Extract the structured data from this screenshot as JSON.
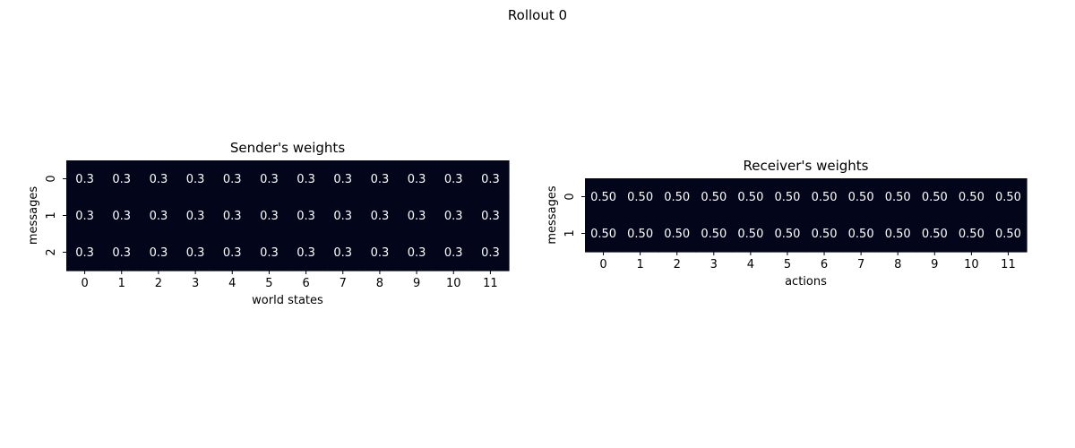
{
  "figure_title": "Rollout 0",
  "chart_data": [
    {
      "type": "heatmap",
      "title": "Sender's weights",
      "xlabel": "world states",
      "ylabel": "messages",
      "x_ticks": [
        "0",
        "1",
        "2",
        "3",
        "4",
        "5",
        "6",
        "7",
        "8",
        "9",
        "10",
        "11"
      ],
      "y_ticks": [
        "0",
        "1",
        "2"
      ],
      "values": [
        [
          0.3,
          0.3,
          0.3,
          0.3,
          0.3,
          0.3,
          0.3,
          0.3,
          0.3,
          0.3,
          0.3,
          0.3
        ],
        [
          0.3,
          0.3,
          0.3,
          0.3,
          0.3,
          0.3,
          0.3,
          0.3,
          0.3,
          0.3,
          0.3,
          0.3
        ],
        [
          0.3,
          0.3,
          0.3,
          0.3,
          0.3,
          0.3,
          0.3,
          0.3,
          0.3,
          0.3,
          0.3,
          0.3
        ]
      ],
      "annotations": [
        [
          "0.3",
          "0.3",
          "0.3",
          "0.3",
          "0.3",
          "0.3",
          "0.3",
          "0.3",
          "0.3",
          "0.3",
          "0.3",
          "0.3"
        ],
        [
          "0.3",
          "0.3",
          "0.3",
          "0.3",
          "0.3",
          "0.3",
          "0.3",
          "0.3",
          "0.3",
          "0.3",
          "0.3",
          "0.3"
        ],
        [
          "0.3",
          "0.3",
          "0.3",
          "0.3",
          "0.3",
          "0.3",
          "0.3",
          "0.3",
          "0.3",
          "0.3",
          "0.3",
          "0.3"
        ]
      ],
      "cell_color": "#03051a",
      "annotation_color": "#ffffff",
      "colorbar": false
    },
    {
      "type": "heatmap",
      "title": "Receiver's weights",
      "xlabel": "actions",
      "ylabel": "messages",
      "x_ticks": [
        "0",
        "1",
        "2",
        "3",
        "4",
        "5",
        "6",
        "7",
        "8",
        "9",
        "10",
        "11"
      ],
      "y_ticks": [
        "0",
        "1"
      ],
      "values": [
        [
          0.5,
          0.5,
          0.5,
          0.5,
          0.5,
          0.5,
          0.5,
          0.5,
          0.5,
          0.5,
          0.5,
          0.5
        ],
        [
          0.5,
          0.5,
          0.5,
          0.5,
          0.5,
          0.5,
          0.5,
          0.5,
          0.5,
          0.5,
          0.5,
          0.5
        ]
      ],
      "annotations": [
        [
          "0.50",
          "0.50",
          "0.50",
          "0.50",
          "0.50",
          "0.50",
          "0.50",
          "0.50",
          "0.50",
          "0.50",
          "0.50",
          "0.50"
        ],
        [
          "0.50",
          "0.50",
          "0.50",
          "0.50",
          "0.50",
          "0.50",
          "0.50",
          "0.50",
          "0.50",
          "0.50",
          "0.50",
          "0.50"
        ]
      ],
      "cell_color": "#03051a",
      "annotation_color": "#ffffff",
      "colorbar": false
    }
  ]
}
